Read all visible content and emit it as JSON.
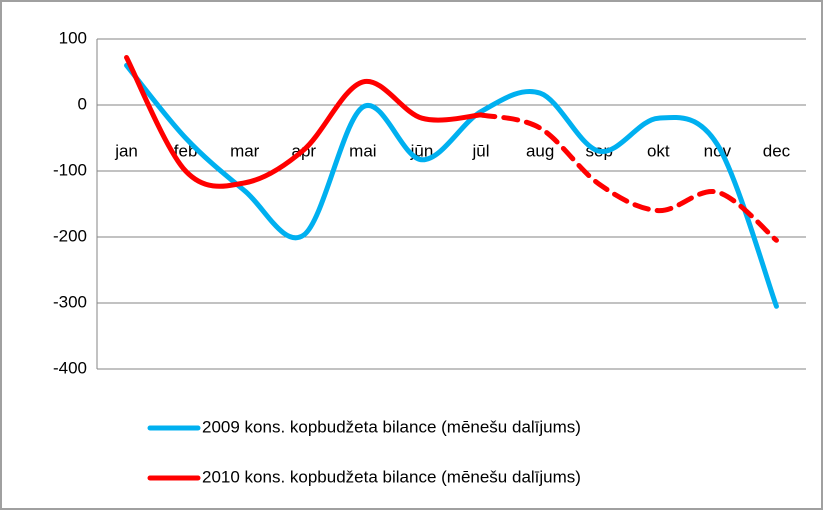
{
  "chart_data": {
    "type": "line",
    "categories": [
      "jan",
      "feb",
      "mar",
      "apr",
      "mai",
      "jūn",
      "jūl",
      "aug",
      "sep",
      "okt",
      "nov",
      "dec"
    ],
    "series": [
      {
        "name": "2009 kons. kopbudžeta bilance (mēnešu dalījums)",
        "color": "#00b0f0",
        "values": [
          60,
          -50,
          -130,
          -197,
          -3,
          -83,
          -10,
          18,
          -70,
          -20,
          -60,
          -305
        ]
      },
      {
        "name": "2010 kons. kopbudžeta bilance (mēnešu dalījums)",
        "color": "#ff0000",
        "dashed_from": "jūl",
        "values": [
          72,
          -100,
          -118,
          -68,
          35,
          -20,
          -15,
          -35,
          -120,
          -160,
          -132,
          -205
        ]
      }
    ],
    "ylim": [
      -400,
      100
    ],
    "yticks": [
      -400,
      -300,
      -200,
      -100,
      0,
      100
    ],
    "grid": true,
    "legend": "bottom",
    "smooth": true
  }
}
